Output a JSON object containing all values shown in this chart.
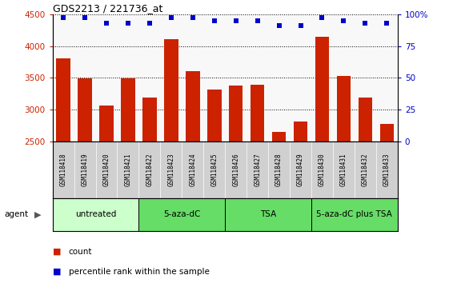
{
  "title": "GDS2213 / 221736_at",
  "samples": [
    "GSM118418",
    "GSM118419",
    "GSM118420",
    "GSM118421",
    "GSM118422",
    "GSM118423",
    "GSM118424",
    "GSM118425",
    "GSM118426",
    "GSM118427",
    "GSM118428",
    "GSM118429",
    "GSM118430",
    "GSM118431",
    "GSM118432",
    "GSM118433"
  ],
  "counts": [
    3800,
    3490,
    3060,
    3490,
    3190,
    4110,
    3610,
    3320,
    3380,
    3390,
    2650,
    2810,
    4140,
    3530,
    3190,
    2780
  ],
  "percentile_ranks": [
    97,
    97,
    93,
    93,
    93,
    97,
    97,
    95,
    95,
    95,
    91,
    91,
    97,
    95,
    93,
    93
  ],
  "ylim_left": [
    2500,
    4500
  ],
  "ylim_right": [
    0,
    100
  ],
  "yticks_left": [
    2500,
    3000,
    3500,
    4000,
    4500
  ],
  "yticks_right": [
    0,
    25,
    50,
    75,
    100
  ],
  "bar_color": "#cc2200",
  "dot_color": "#0000cc",
  "plot_bg": "#f8f8f8",
  "bg_color": "#ffffff",
  "sample_bg": "#d0d0d0",
  "group_configs": [
    {
      "start": 0,
      "end": 3,
      "label": "untreated",
      "color": "#ccffcc"
    },
    {
      "start": 4,
      "end": 7,
      "label": "5-aza-dC",
      "color": "#66dd66"
    },
    {
      "start": 8,
      "end": 11,
      "label": "TSA",
      "color": "#66dd66"
    },
    {
      "start": 12,
      "end": 15,
      "label": "5-aza-dC plus TSA",
      "color": "#66dd66"
    }
  ],
  "legend_count_color": "#cc2200",
  "legend_dot_color": "#0000cc",
  "agent_label": "agent"
}
